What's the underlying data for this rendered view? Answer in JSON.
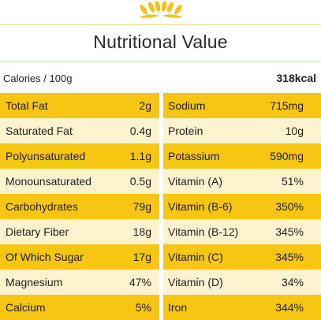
{
  "header": {
    "title": "Nutritional Value",
    "accent_color": "#f7c613",
    "light_color": "#fdf3cf",
    "decoration_icon": "wheat-icon"
  },
  "calories": {
    "label": "Calories / 100g",
    "value": "318kcal"
  },
  "left_table": [
    {
      "name": "Total Fat",
      "value": "2g"
    },
    {
      "name": "Saturated Fat",
      "value": "0.4g"
    },
    {
      "name": "Polyunsaturated",
      "value": "1.1g"
    },
    {
      "name": "Monounsaturated",
      "value": "0.5g"
    },
    {
      "name": "Carbohydrates",
      "value": "79g"
    },
    {
      "name": "Dietary Fiber",
      "value": "18g"
    },
    {
      "name": "Of Which Sugar",
      "value": "17g"
    },
    {
      "name": "Magnesium",
      "value": "47%"
    },
    {
      "name": "Calcium",
      "value": "5%"
    }
  ],
  "right_table": [
    {
      "name": "Sodium",
      "value": "715mg"
    },
    {
      "name": "Protein",
      "value": "10g"
    },
    {
      "name": "Potassium",
      "value": "590mg"
    },
    {
      "name": "Vitamin (A)",
      "value": "51%"
    },
    {
      "name": "Vitamin (B-6)",
      "value": "350%"
    },
    {
      "name": "Vitamin (B-12)",
      "value": "345%"
    },
    {
      "name": "Vitamin (C)",
      "value": "345%"
    },
    {
      "name": "Vitamin (D)",
      "value": "34%"
    },
    {
      "name": "Iron",
      "value": "344%"
    }
  ]
}
